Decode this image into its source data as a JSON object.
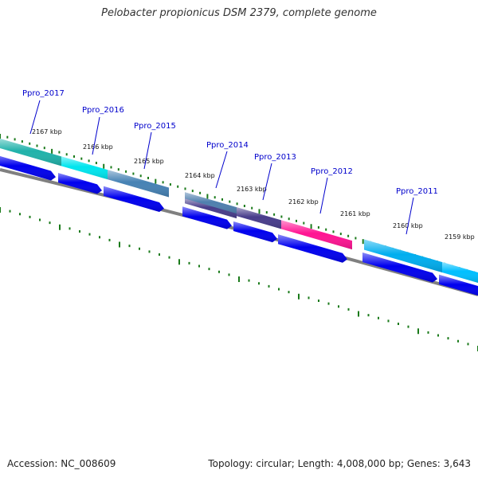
{
  "title": "Pelobacter propionicus DSM 2379, complete genome",
  "footer": {
    "accession": "Accession: NC_008609",
    "summary": "Topology: circular; Length: 4,008,000 bp; Genes: 3,643"
  },
  "colors": {
    "gene_label": "#0000cc",
    "tick": "#1a7a1a",
    "backbone": "#808080",
    "cds_arrow": "#0000ee"
  },
  "kbp_ticks": [
    "2167 kbp",
    "2166 kbp",
    "2165 kbp",
    "2164 kbp",
    "2163 kbp",
    "2162 kbp",
    "2161 kbp",
    "2160 kbp",
    "2159 kbp"
  ],
  "genes": [
    {
      "id": "Ppro_2017",
      "color": "#20b2aa"
    },
    {
      "id": "Ppro_2016",
      "color": "#00e5ee"
    },
    {
      "id": "Ppro_2015",
      "color": "#4682b4"
    },
    {
      "id": "Ppro_2014",
      "color": "#4f7fae"
    },
    {
      "id": "Ppro_2013",
      "color": "#483d8b"
    },
    {
      "id": "Ppro_2012",
      "color": "#ff1493"
    },
    {
      "id": "Ppro_2011",
      "color": "#00aeef"
    }
  ],
  "extra_segments": [
    {
      "name": "lower-band-2014",
      "color": "#483d8b"
    },
    {
      "name": "tail-band",
      "color": "#00bfff"
    }
  ]
}
